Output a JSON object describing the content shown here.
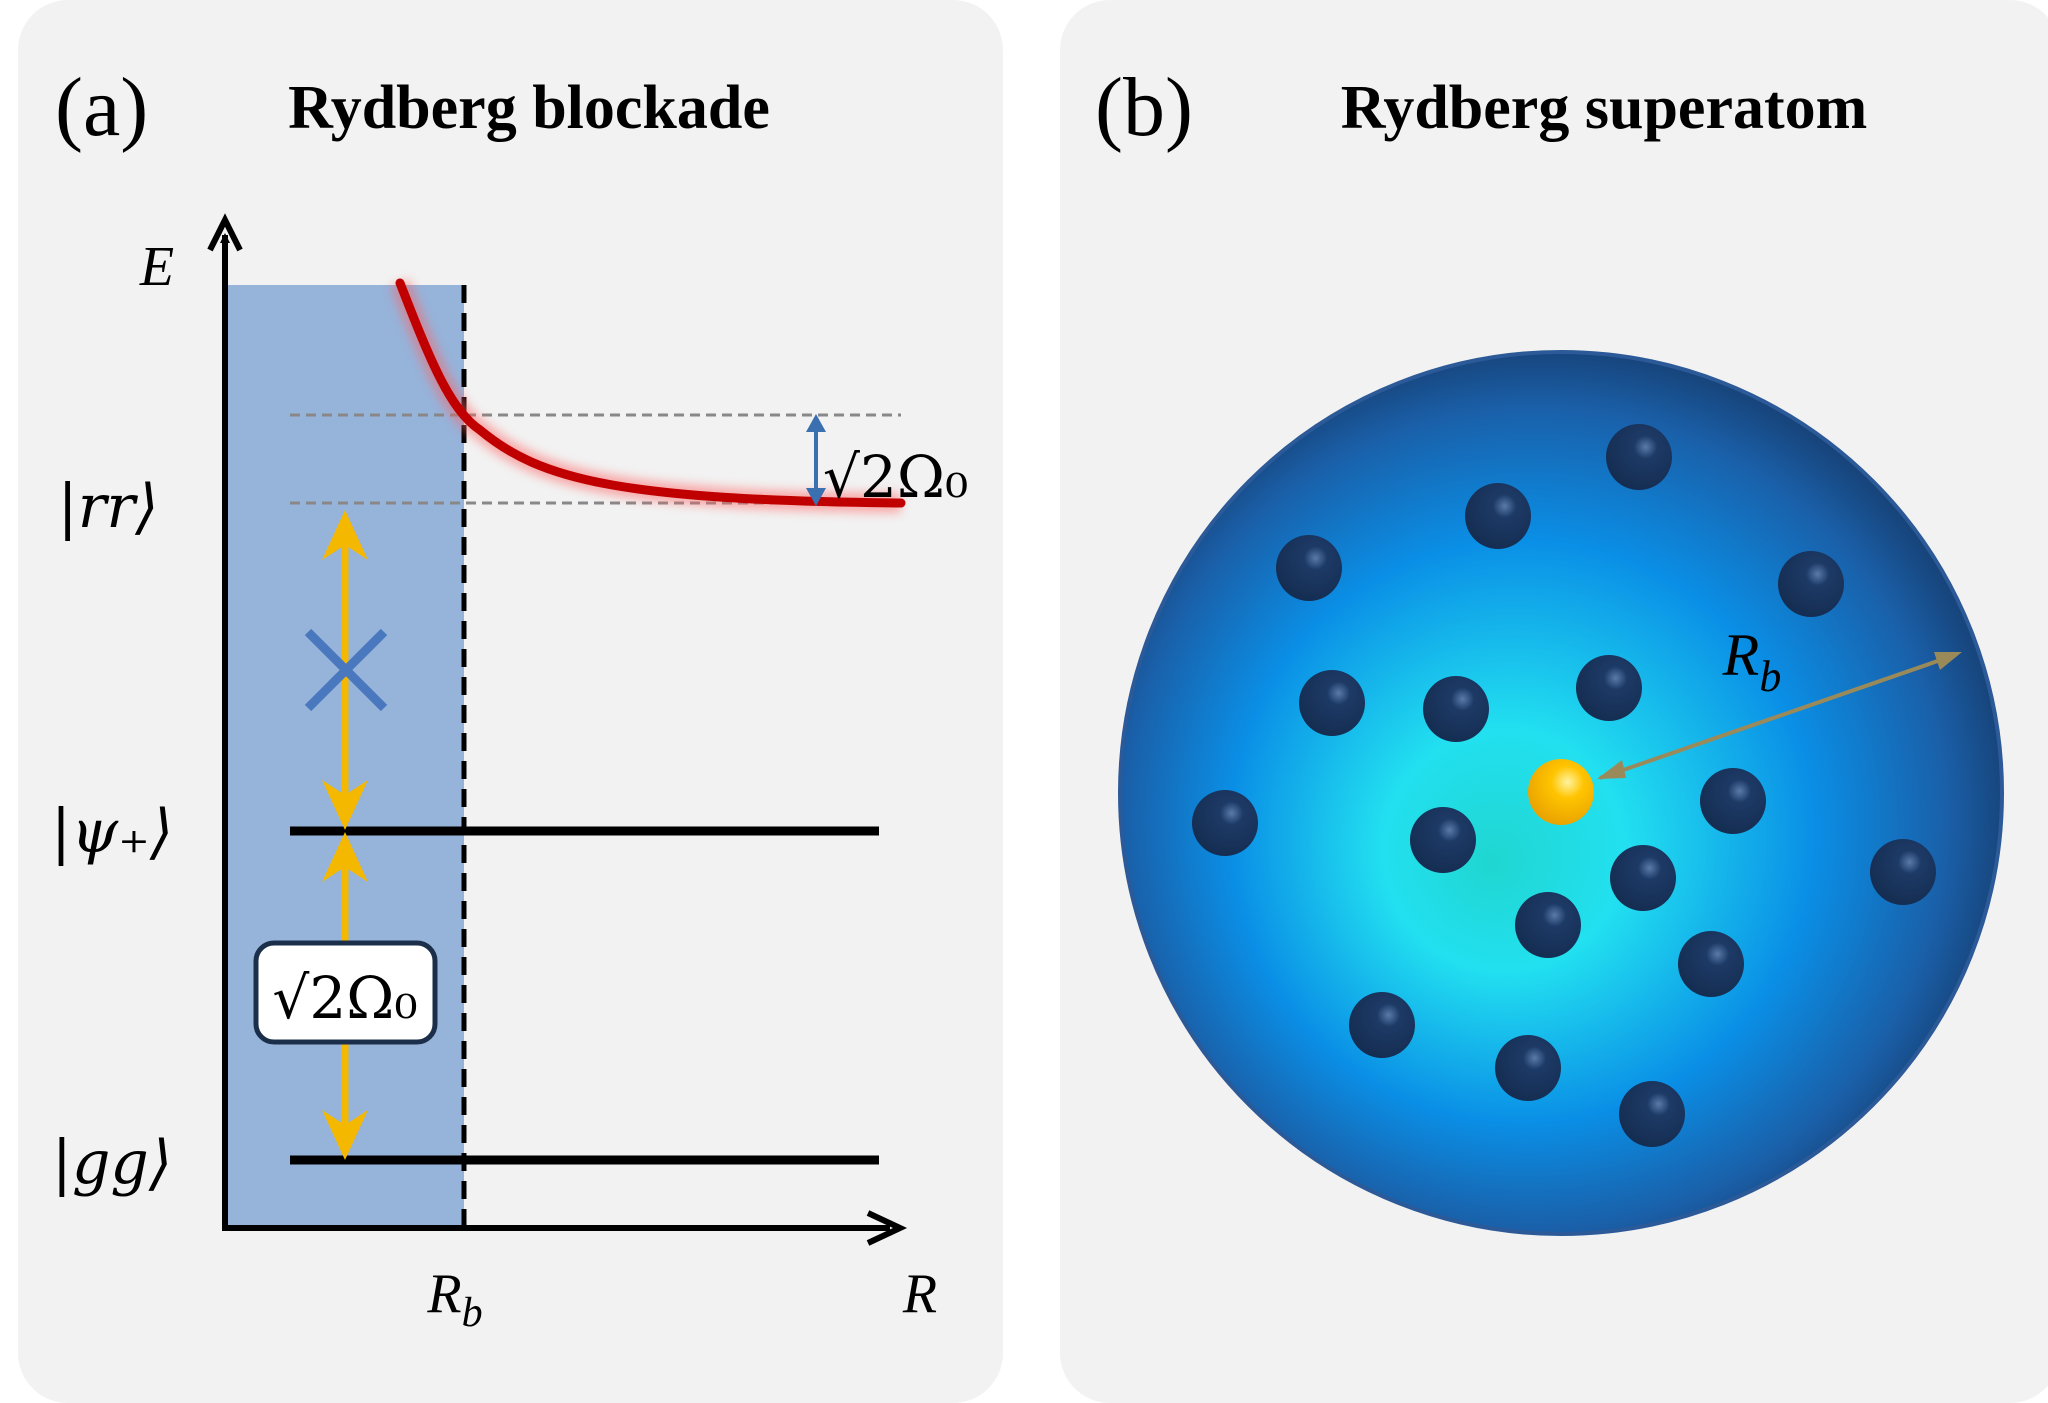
{
  "panel_a": {
    "label": "(a)",
    "title": "Rydberg blockade",
    "axis_y_label": "E",
    "axis_x_label": "R",
    "rb_label": "R",
    "rb_sub": "b",
    "states": [
      {
        "name": "rr",
        "text": "|rr⟩"
      },
      {
        "name": "psi-plus",
        "text": "|ψ₊⟩"
      },
      {
        "name": "gg",
        "text": "|gg⟩"
      }
    ],
    "shift_label": "√2Ω₀",
    "coupling_label": "√2Ω₀",
    "colors": {
      "blockade_region": "#96b3da",
      "potential_curve": "#c00000",
      "drive_arrow": "#f5b800",
      "shift_arrow": "#3a6fb0",
      "blocked_mark": "#4a78bf"
    }
  },
  "panel_b": {
    "label": "(b)",
    "title": "Rydberg superatom",
    "rb_label": "R",
    "rb_sub": "b",
    "atom_count": 17,
    "colors": {
      "sphere_edge": "#1f4f8f",
      "sphere_center": "#1fd6d0",
      "atom": "#19345e",
      "excited_atom": "#f5b800",
      "radius_arrow": "#9a8a5a"
    }
  }
}
